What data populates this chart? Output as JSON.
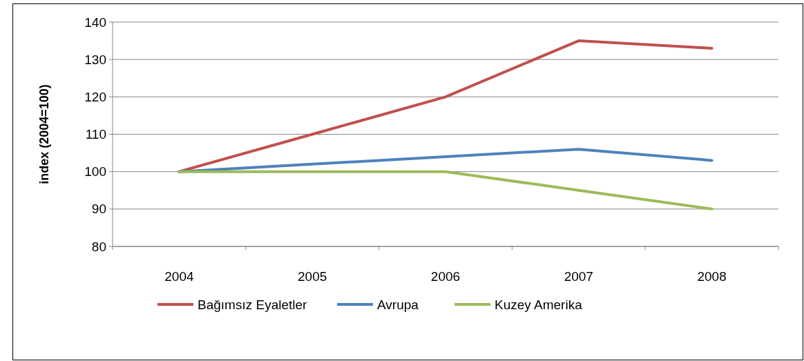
{
  "chart_data": {
    "type": "line",
    "ylabel": "index (2004=100)",
    "categories": [
      "2004",
      "2005",
      "2006",
      "2007",
      "2008"
    ],
    "series": [
      {
        "name": "Bağımsız Eyaletler",
        "color": "#c0504d",
        "values": [
          100,
          110,
          120,
          135,
          133
        ]
      },
      {
        "name": "Avrupa",
        "color": "#4f81bd",
        "values": [
          100,
          102,
          104,
          106,
          103
        ]
      },
      {
        "name": "Kuzey Amerika",
        "color": "#9bbb59",
        "values": [
          100,
          100,
          100,
          95,
          90
        ]
      }
    ],
    "ylim": [
      80,
      140
    ],
    "yticks": [
      80,
      90,
      100,
      110,
      120,
      130,
      140
    ],
    "grid": "y",
    "legend": "bottom",
    "marker": "none",
    "line_style": "solid"
  }
}
